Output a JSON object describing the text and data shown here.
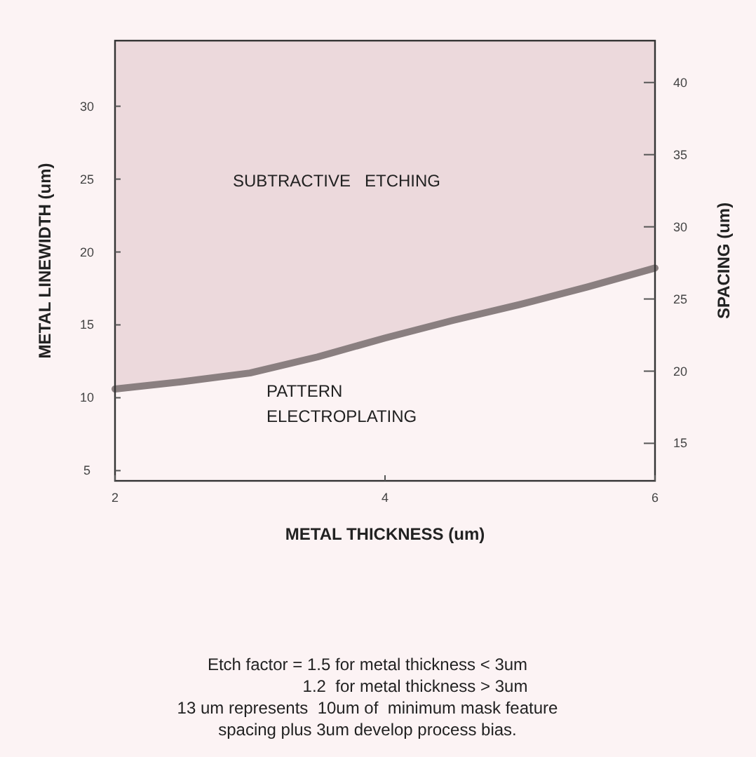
{
  "chart_data": {
    "type": "line",
    "xlabel": "METAL THICKNESS (um)",
    "ylabel": "METAL LINEWIDTH (um)",
    "y2label": "SPACING (um)",
    "x": [
      2,
      2.5,
      3,
      3.5,
      4,
      4.5,
      5,
      5.5,
      6
    ],
    "series": [
      {
        "color": "#8a7f80",
        "values": [
          10.6,
          11.1,
          11.7,
          12.8,
          14.1,
          15.3,
          16.4,
          17.6,
          18.9
        ],
        "lower": [
          10.6,
          11.1,
          11.7,
          12.8,
          14.1,
          15.3,
          16.4,
          17.6,
          18.9
        ],
        "upper": [
          34.5,
          34.5,
          34.5,
          34.5,
          34.5,
          34.5,
          34.5,
          34.5,
          34.5
        ]
      }
    ],
    "xlim": [
      2,
      6
    ],
    "xticks": [
      2,
      4,
      6
    ],
    "ylim": [
      4.3,
      34.5
    ],
    "yticks": [
      5,
      10,
      15,
      20,
      25,
      30
    ],
    "y2lim": [
      12.4,
      42.9
    ],
    "y2ticks": [
      15,
      20,
      25,
      30,
      35,
      40
    ],
    "grid": false,
    "annotations": [
      "SUBTRACTIVE   ETCHING",
      "PATTERN\nELECTROPLATING",
      "Etch factor = 1.5 for metal thickness < 3um",
      "1.2  for metal thickness > 3um",
      "13 um represents  10um of  minimum mask feature",
      "spacing plus 3um develop process bias."
    ]
  }
}
